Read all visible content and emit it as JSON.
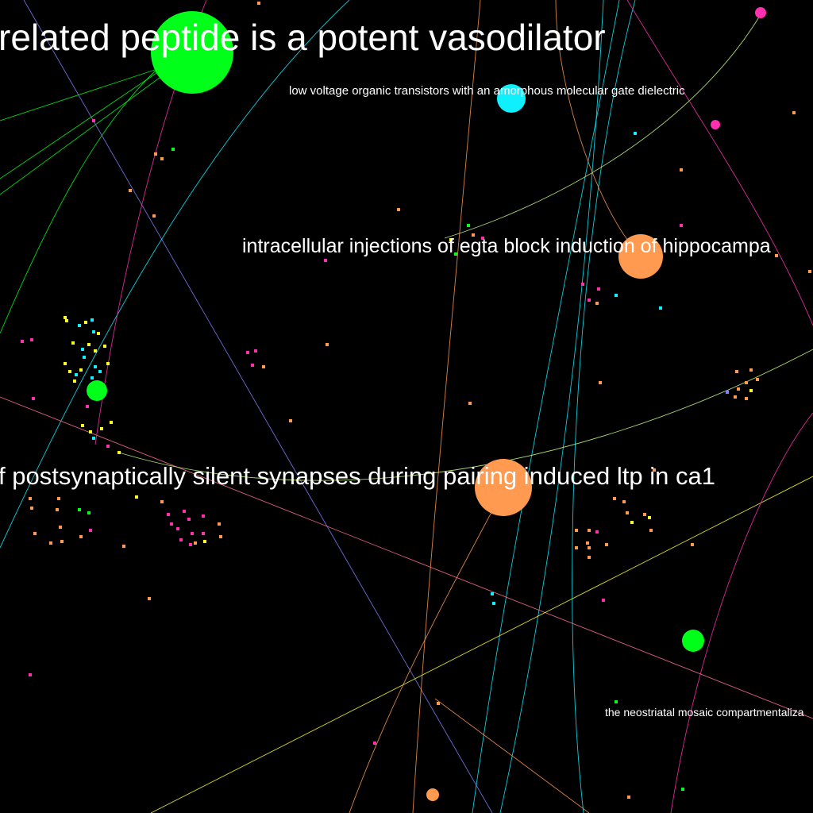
{
  "graph": {
    "background": "#000000",
    "palette": {
      "green": "#00ff19",
      "cyan": "#0ff0ff",
      "orange": "#ff9a50",
      "magenta": "#ff30b0",
      "yellow": "#ffff20",
      "blue": "#8080ff",
      "lightgreen": "#c8ff80",
      "pink": "#ff7090"
    },
    "labels": [
      {
        "id": "vasodilator",
        "text": "related peptide is a potent vasodilator"
      },
      {
        "id": "transistors",
        "text": "low voltage organic transistors with an amorphous molecular gate dielectric"
      },
      {
        "id": "egta",
        "text": "intracellular injections of egta block induction of hippocampa"
      },
      {
        "id": "silent",
        "text": "f postsynaptically silent synapses during pairing induced ltp in ca1"
      },
      {
        "id": "neostriatal",
        "text": "the neostriatal mosaic compartmentaliza"
      }
    ],
    "nodes": [
      {
        "id": "n-vasodilator",
        "color": "green"
      },
      {
        "id": "n-transistors",
        "color": "cyan"
      },
      {
        "id": "n-egta",
        "color": "orange"
      },
      {
        "id": "n-silent",
        "color": "orange"
      },
      {
        "id": "n-green-left",
        "color": "green"
      },
      {
        "id": "n-green-right",
        "color": "green"
      },
      {
        "id": "n-magenta-top",
        "color": "magenta"
      },
      {
        "id": "n-magenta-right",
        "color": "magenta"
      },
      {
        "id": "n-orange-bottom",
        "color": "orange"
      }
    ]
  }
}
